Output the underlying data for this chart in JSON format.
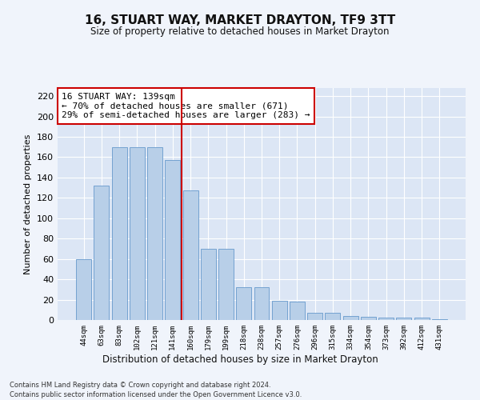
{
  "title": "16, STUART WAY, MARKET DRAYTON, TF9 3TT",
  "subtitle": "Size of property relative to detached houses in Market Drayton",
  "xlabel": "Distribution of detached houses by size in Market Drayton",
  "ylabel": "Number of detached properties",
  "categories": [
    "44sqm",
    "63sqm",
    "83sqm",
    "102sqm",
    "121sqm",
    "141sqm",
    "160sqm",
    "179sqm",
    "199sqm",
    "218sqm",
    "238sqm",
    "257sqm",
    "276sqm",
    "296sqm",
    "315sqm",
    "334sqm",
    "354sqm",
    "373sqm",
    "392sqm",
    "412sqm",
    "431sqm"
  ],
  "values": [
    60,
    132,
    170,
    170,
    170,
    157,
    127,
    70,
    70,
    32,
    32,
    19,
    18,
    7,
    7,
    4,
    3,
    2,
    2,
    2,
    1
  ],
  "bar_color": "#b8cfe8",
  "bar_edge_color": "#6699cc",
  "vline_x": 5.5,
  "vline_color": "#cc0000",
  "annotation_text": "16 STUART WAY: 139sqm\n← 70% of detached houses are smaller (671)\n29% of semi-detached houses are larger (283) →",
  "annotation_box_color": "#ffffff",
  "annotation_box_edge": "#cc0000",
  "ylim": [
    0,
    228
  ],
  "yticks": [
    0,
    20,
    40,
    60,
    80,
    100,
    120,
    140,
    160,
    180,
    200,
    220
  ],
  "background_color": "#dce6f5",
  "grid_color": "#ffffff",
  "footer_line1": "Contains HM Land Registry data © Crown copyright and database right 2024.",
  "footer_line2": "Contains public sector information licensed under the Open Government Licence v3.0.",
  "fig_width": 6.0,
  "fig_height": 5.0,
  "fig_bg": "#f0f4fb"
}
